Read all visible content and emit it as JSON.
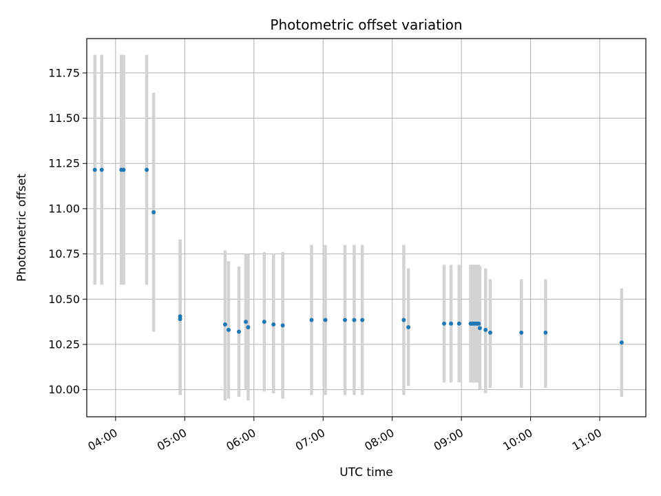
{
  "chart_data": {
    "type": "scatter",
    "title": "Photometric offset variation",
    "xlabel": "UTC time",
    "ylabel": "Photometric offset",
    "grid": true,
    "xlim": [
      "03:35",
      "11:40"
    ],
    "ylim": [
      9.85,
      11.94
    ],
    "x_ticks": [
      "04:00",
      "05:00",
      "06:00",
      "07:00",
      "08:00",
      "09:00",
      "10:00",
      "11:00"
    ],
    "y_ticks": [
      10.0,
      10.25,
      10.5,
      10.75,
      11.0,
      11.25,
      11.5,
      11.75
    ],
    "y_tick_labels": [
      "10.00",
      "10.25",
      "10.50",
      "10.75",
      "11.00",
      "11.25",
      "11.50",
      "11.75"
    ],
    "colors": {
      "point": "#1f77b4",
      "errorbar": "#d3d3d3",
      "grid": "#b0b0b0"
    },
    "series": [
      {
        "points": [
          {
            "x": "03:42",
            "y": 11.215,
            "ylow": 10.58,
            "yhigh": 11.85
          },
          {
            "x": "03:48",
            "y": 11.215,
            "ylow": 10.58,
            "yhigh": 11.85
          },
          {
            "x": "04:05",
            "y": 11.215,
            "ylow": 10.58,
            "yhigh": 11.85
          },
          {
            "x": "04:07",
            "y": 11.215,
            "ylow": 10.58,
            "yhigh": 11.85
          },
          {
            "x": "04:27",
            "y": 11.215,
            "ylow": 10.58,
            "yhigh": 11.85
          },
          {
            "x": "04:33",
            "y": 10.98,
            "ylow": 10.32,
            "yhigh": 11.64
          },
          {
            "x": "04:56",
            "y": 10.405,
            "ylow": 9.97,
            "yhigh": 10.83
          },
          {
            "x": "04:56",
            "y": 10.39,
            "ylow": 9.97,
            "yhigh": 10.83
          },
          {
            "x": "05:35",
            "y": 10.36,
            "ylow": 9.94,
            "yhigh": 10.77
          },
          {
            "x": "05:38",
            "y": 10.33,
            "ylow": 9.95,
            "yhigh": 10.71
          },
          {
            "x": "05:47",
            "y": 10.32,
            "ylow": 9.96,
            "yhigh": 10.68
          },
          {
            "x": "05:53",
            "y": 10.375,
            "ylow": 10.0,
            "yhigh": 10.75
          },
          {
            "x": "05:55",
            "y": 10.345,
            "ylow": 9.94,
            "yhigh": 10.75
          },
          {
            "x": "06:09",
            "y": 10.375,
            "ylow": 9.99,
            "yhigh": 10.76
          },
          {
            "x": "06:17",
            "y": 10.36,
            "ylow": 9.98,
            "yhigh": 10.75
          },
          {
            "x": "06:25",
            "y": 10.355,
            "ylow": 9.95,
            "yhigh": 10.76
          },
          {
            "x": "06:50",
            "y": 10.385,
            "ylow": 9.97,
            "yhigh": 10.8
          },
          {
            "x": "07:02",
            "y": 10.385,
            "ylow": 9.97,
            "yhigh": 10.8
          },
          {
            "x": "07:19",
            "y": 10.385,
            "ylow": 9.97,
            "yhigh": 10.8
          },
          {
            "x": "07:27",
            "y": 10.385,
            "ylow": 9.97,
            "yhigh": 10.8
          },
          {
            "x": "07:34",
            "y": 10.385,
            "ylow": 9.97,
            "yhigh": 10.8
          },
          {
            "x": "08:10",
            "y": 10.385,
            "ylow": 9.97,
            "yhigh": 10.8
          },
          {
            "x": "08:14",
            "y": 10.345,
            "ylow": 10.02,
            "yhigh": 10.67
          },
          {
            "x": "08:45",
            "y": 10.365,
            "ylow": 10.04,
            "yhigh": 10.69
          },
          {
            "x": "08:51",
            "y": 10.365,
            "ylow": 10.04,
            "yhigh": 10.69
          },
          {
            "x": "08:58",
            "y": 10.365,
            "ylow": 10.04,
            "yhigh": 10.69
          },
          {
            "x": "09:08",
            "y": 10.365,
            "ylow": 10.04,
            "yhigh": 10.69
          },
          {
            "x": "09:09",
            "y": 10.365,
            "ylow": 10.04,
            "yhigh": 10.69
          },
          {
            "x": "09:10",
            "y": 10.365,
            "ylow": 10.04,
            "yhigh": 10.69
          },
          {
            "x": "09:11",
            "y": 10.365,
            "ylow": 10.04,
            "yhigh": 10.69
          },
          {
            "x": "09:12",
            "y": 10.365,
            "ylow": 10.04,
            "yhigh": 10.69
          },
          {
            "x": "09:13",
            "y": 10.365,
            "ylow": 10.04,
            "yhigh": 10.69
          },
          {
            "x": "09:14",
            "y": 10.365,
            "ylow": 10.04,
            "yhigh": 10.69
          },
          {
            "x": "09:15",
            "y": 10.365,
            "ylow": 10.04,
            "yhigh": 10.69
          },
          {
            "x": "09:16",
            "y": 10.34,
            "ylow": 10.0,
            "yhigh": 10.68
          },
          {
            "x": "09:21",
            "y": 10.33,
            "ylow": 9.98,
            "yhigh": 10.67
          },
          {
            "x": "09:25",
            "y": 10.315,
            "ylow": 10.01,
            "yhigh": 10.61
          },
          {
            "x": "09:52",
            "y": 10.315,
            "ylow": 10.01,
            "yhigh": 10.61
          },
          {
            "x": "10:13",
            "y": 10.315,
            "ylow": 10.01,
            "yhigh": 10.61
          },
          {
            "x": "11:19",
            "y": 10.26,
            "ylow": 9.96,
            "yhigh": 10.56
          }
        ]
      }
    ]
  }
}
